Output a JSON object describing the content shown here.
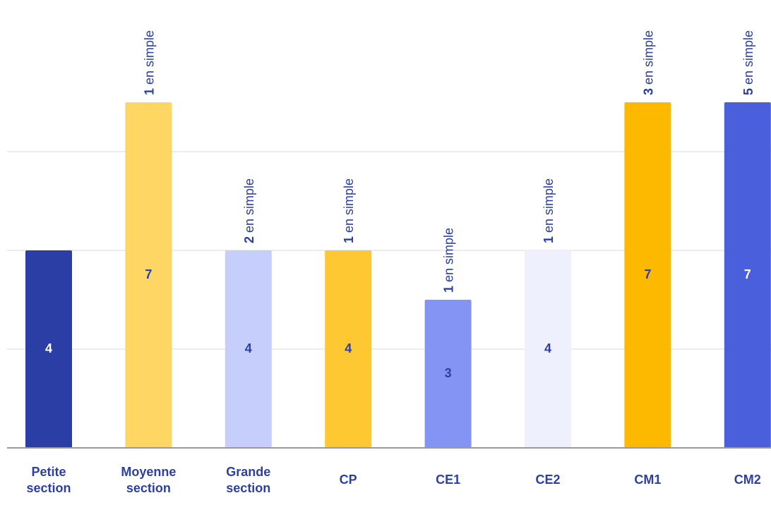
{
  "chart_data": {
    "type": "bar",
    "categories": [
      "Petite section",
      "Moyenne section",
      "Grande section",
      "CP",
      "CE1",
      "CE2",
      "CM1",
      "CM2"
    ],
    "values": [
      4,
      7,
      4,
      4,
      3,
      4,
      7,
      7
    ],
    "colors": [
      "#2b3ea6",
      "#fdd663",
      "#c6cffc",
      "#fec832",
      "#8494f5",
      "#eef1fd",
      "#fdb900",
      "#4a5fdc"
    ],
    "simple_values": [
      null,
      1,
      2,
      1,
      1,
      1,
      3,
      5
    ],
    "simple_label": "en simple",
    "ylim": [
      0,
      9
    ],
    "yticks": [
      0,
      2,
      4,
      6
    ],
    "grid": true
  }
}
